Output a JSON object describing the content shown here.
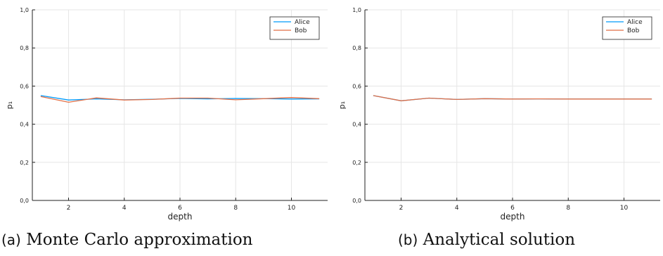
{
  "chart_data": [
    {
      "type": "line",
      "xlabel": "depth",
      "ylabel": "p₁",
      "xlim": [
        0.7,
        11.3
      ],
      "ylim": [
        0,
        1
      ],
      "xticks": [
        2,
        4,
        6,
        8,
        10
      ],
      "yticks": [
        "0,0",
        "0,2",
        "0,4",
        "0,6",
        "0,8",
        "1,0"
      ],
      "grid": true,
      "legend_position": "top-right",
      "x": [
        1,
        2,
        3,
        4,
        5,
        6,
        7,
        8,
        9,
        10,
        11
      ],
      "series": [
        {
          "name": "Alice",
          "color": "#009AFA",
          "values": [
            0.55,
            0.527,
            0.533,
            0.528,
            0.531,
            0.535,
            0.533,
            0.535,
            0.534,
            0.532,
            0.533
          ]
        },
        {
          "name": "Bob",
          "color": "#E26F46",
          "values": [
            0.545,
            0.515,
            0.538,
            0.527,
            0.53,
            0.537,
            0.537,
            0.528,
            0.534,
            0.54,
            0.534
          ]
        }
      ],
      "caption_tag": "(a)",
      "caption": "Monte Carlo approximation"
    },
    {
      "type": "line",
      "xlabel": "depth",
      "ylabel": "p₁",
      "xlim": [
        0.7,
        11.3
      ],
      "ylim": [
        0,
        1
      ],
      "xticks": [
        2,
        4,
        6,
        8,
        10
      ],
      "yticks": [
        "0,0",
        "0,2",
        "0,4",
        "0,6",
        "0,8",
        "1,0"
      ],
      "grid": true,
      "legend_position": "top-right",
      "x": [
        1,
        2,
        3,
        4,
        5,
        6,
        7,
        8,
        9,
        10,
        11
      ],
      "series": [
        {
          "name": "Alice",
          "color": "#009AFA",
          "values": [
            0.55,
            0.523,
            0.537,
            0.53,
            0.534,
            0.532,
            0.533,
            0.532,
            0.532,
            0.532,
            0.532
          ]
        },
        {
          "name": "Bob",
          "color": "#E26F46",
          "values": [
            0.55,
            0.523,
            0.537,
            0.53,
            0.534,
            0.532,
            0.533,
            0.532,
            0.532,
            0.532,
            0.532
          ]
        }
      ],
      "caption_tag": "(b)",
      "caption": "Analytical solution"
    }
  ]
}
